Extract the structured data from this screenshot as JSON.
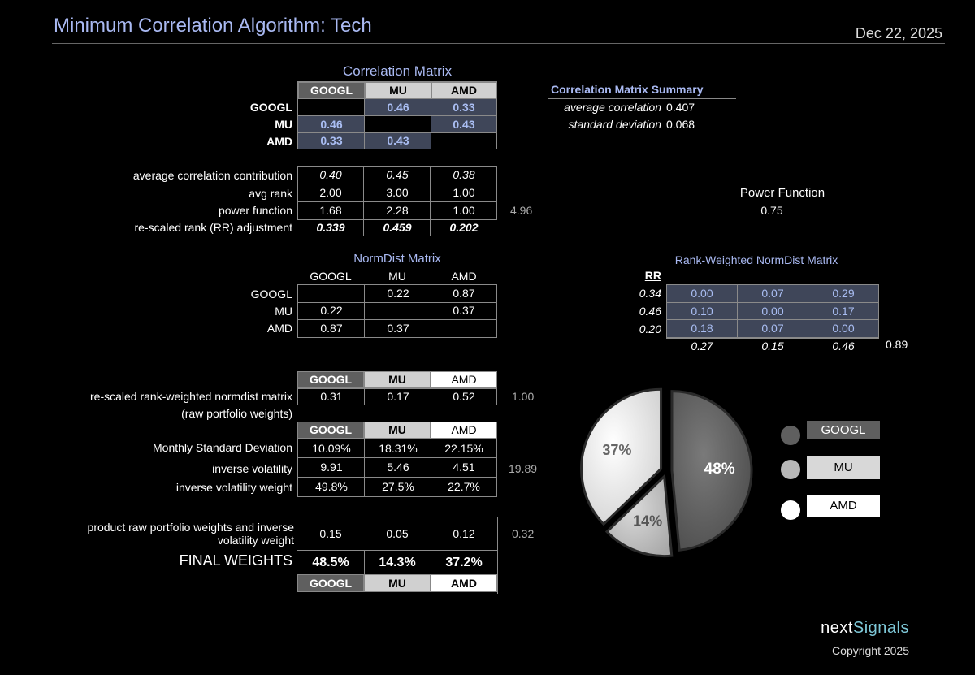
{
  "header": {
    "title": "Minimum Correlation Algorithm:  Tech",
    "date": "Dec 22, 2025"
  },
  "tickers": [
    "GOOGL",
    "MU",
    "AMD"
  ],
  "colors": {
    "googl": "#5f5f5f",
    "mu": "#d0d0d0",
    "amd": "#ffffff",
    "accent": "#a9b9f2"
  },
  "correlation_matrix": {
    "title": "Correlation Matrix",
    "rows": [
      [
        "",
        "0.46",
        "0.33"
      ],
      [
        "0.46",
        "",
        "0.43"
      ],
      [
        "0.33",
        "0.43",
        ""
      ]
    ]
  },
  "summary": {
    "title": "Correlation Matrix Summary",
    "avg_label": "average correlation",
    "avg_value": "0.407",
    "std_label": "standard deviation",
    "std_value": "0.068"
  },
  "stats": {
    "avg_contrib_label": "average correlation contribution",
    "avg_contrib": [
      "0.40",
      "0.45",
      "0.38"
    ],
    "avg_rank_label": "avg rank",
    "avg_rank": [
      "2.00",
      "3.00",
      "1.00"
    ],
    "power_label": "power function",
    "power": [
      "1.68",
      "2.28",
      "1.00"
    ],
    "power_sum": "4.96",
    "rr_label": "re-scaled rank (RR) adjustment",
    "rr": [
      "0.339",
      "0.459",
      "0.202"
    ]
  },
  "power_function": {
    "label": "Power Function",
    "value": "0.75"
  },
  "normdist": {
    "title": "NormDist Matrix",
    "rows": [
      [
        "",
        "0.22",
        "0.87"
      ],
      [
        "0.22",
        "",
        "0.37"
      ],
      [
        "0.87",
        "0.37",
        ""
      ]
    ]
  },
  "rank_weighted": {
    "title": "Rank-Weighted NormDist Matrix",
    "rr_header": "RR",
    "rr": [
      "0.34",
      "0.46",
      "0.20"
    ],
    "rows": [
      [
        "0.00",
        "0.07",
        "0.29"
      ],
      [
        "0.10",
        "0.00",
        "0.17"
      ],
      [
        "0.18",
        "0.07",
        "0.00"
      ]
    ],
    "totals": [
      "0.27",
      "0.15",
      "0.46"
    ],
    "grand_total": "0.89"
  },
  "raw_weights": {
    "label1": "re-scaled rank-weighted normdist matrix",
    "label2": "(raw portfolio weights)",
    "values": [
      "0.31",
      "0.17",
      "0.52"
    ],
    "sum": "1.00"
  },
  "volatility": {
    "std_label": "Monthly Standard Deviation",
    "std": [
      "10.09%",
      "18.31%",
      "22.15%"
    ],
    "inv_label": "inverse volatility",
    "inv": [
      "9.91",
      "5.46",
      "4.51"
    ],
    "inv_sum": "19.89",
    "w_label": "inverse volatility weight",
    "w": [
      "49.8%",
      "27.5%",
      "22.7%"
    ]
  },
  "product": {
    "label1": "product raw portfolio weights and inverse",
    "label2": "volatility weight",
    "values": [
      "0.15",
      "0.05",
      "0.12"
    ],
    "sum": "0.32"
  },
  "final": {
    "label": "FINAL WEIGHTS",
    "values": [
      "48.5%",
      "14.3%",
      "37.2%"
    ]
  },
  "chart_data": {
    "type": "pie",
    "categories": [
      "GOOGL",
      "MU",
      "AMD"
    ],
    "values": [
      48.5,
      14.3,
      37.2
    ],
    "labels": [
      "48%",
      "14%",
      "37%"
    ],
    "legend": [
      "GOOGL",
      "MU",
      "AMD"
    ]
  },
  "footer": {
    "brand_a": "next",
    "brand_b": "Signals",
    "copyright": "Copyright 2025"
  }
}
